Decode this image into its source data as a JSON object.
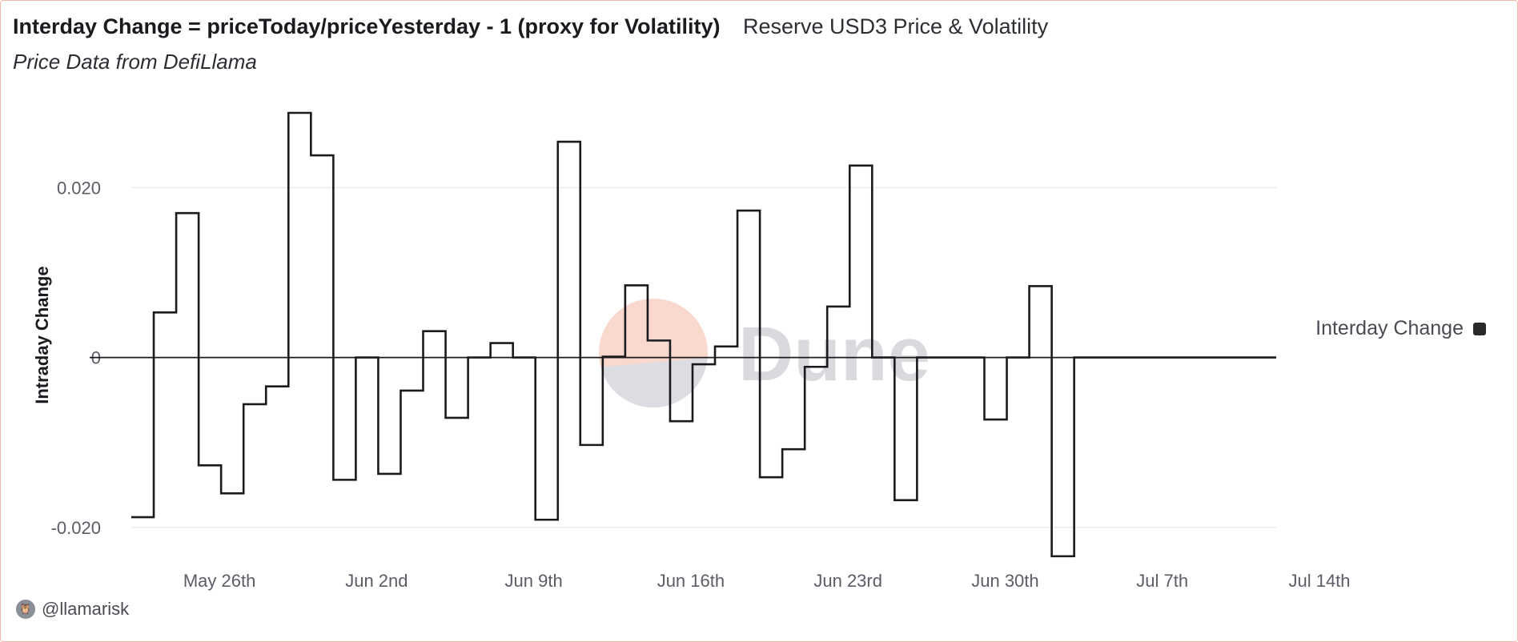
{
  "header": {
    "title": "Interday Change = priceToday/priceYesterday - 1 (proxy for Volatility)",
    "series_name": "Reserve USD3 Price & Volatility",
    "subtitle": "Price Data from DefiLlama"
  },
  "legend": {
    "label": "Interday Change"
  },
  "footer": {
    "handle": "@llamarisk",
    "avatar_icon": "owl-avatar-icon"
  },
  "watermark": {
    "text": "Dune"
  },
  "colors": {
    "line": "#1b1b1f",
    "grid": "#ececf0",
    "accent": "#f3b9a6"
  },
  "chart_data": {
    "type": "line",
    "step": true,
    "title": "Interday Change = priceToday/priceYesterday - 1 (proxy for Volatility)",
    "ylabel": "Intraday Change",
    "xlabel": "",
    "ylim": [
      -0.0236,
      0.0288
    ],
    "y_ticks": [
      {
        "value": 0.02,
        "label": "0.020"
      },
      {
        "value": 0,
        "label": "0"
      },
      {
        "value": -0.02,
        "label": "-0.020"
      }
    ],
    "x_range": [
      "2024-05-24",
      "2024-07-14"
    ],
    "x_ticks": [
      {
        "date": "2024-05-26",
        "label": "May 26th"
      },
      {
        "date": "2024-06-02",
        "label": "Jun 2nd"
      },
      {
        "date": "2024-06-09",
        "label": "Jun 9th"
      },
      {
        "date": "2024-06-16",
        "label": "Jun 16th"
      },
      {
        "date": "2024-06-23",
        "label": "Jun 23rd"
      },
      {
        "date": "2024-06-30",
        "label": "Jun 30th"
      },
      {
        "date": "2024-07-07",
        "label": "Jul 7th"
      },
      {
        "date": "2024-07-14",
        "label": "Jul 14th"
      }
    ],
    "series": [
      {
        "name": "Interday Change",
        "start_date": "2024-05-24",
        "values": [
          -0.0188,
          0.0053,
          0.017,
          -0.0127,
          -0.016,
          -0.0055,
          -0.0034,
          0.0288,
          0.0238,
          -0.0144,
          0.0,
          -0.0137,
          -0.0039,
          0.0031,
          -0.0071,
          0.0,
          0.0017,
          0.0,
          -0.0191,
          0.0254,
          -0.0103,
          0.0001,
          0.0085,
          0.002,
          -0.0075,
          -0.0008,
          0.0013,
          0.0173,
          -0.0141,
          -0.0108,
          -0.0011,
          0.006,
          0.0226,
          0.0,
          -0.0168,
          0.0,
          0.0,
          0.0,
          -0.0073,
          0.0,
          0.0084,
          -0.0234,
          0.0,
          0.0,
          0.0,
          0.0,
          0.0,
          0.0,
          0.0,
          0.0,
          0.0
        ]
      }
    ]
  }
}
